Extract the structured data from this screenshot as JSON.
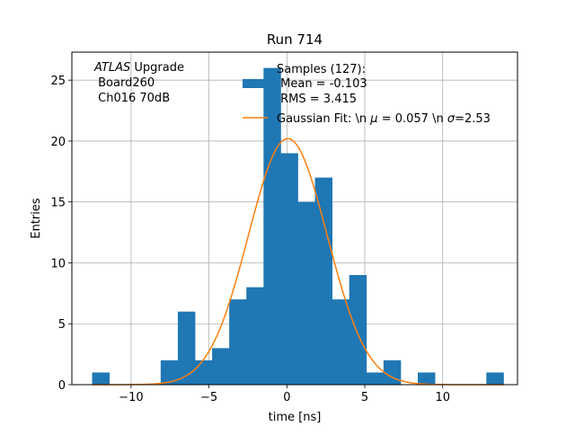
{
  "chart_data": {
    "type": "bar",
    "title": "Run 714",
    "xlabel": "time [ns]",
    "ylabel": "Entries",
    "xlim": [
      -13.8,
      14.8
    ],
    "ylim": [
      0,
      27.3
    ],
    "grid": true,
    "legend_position": "top-right",
    "colors": {
      "histogram": "#1f77b4",
      "fit": "#ff7f0e"
    },
    "bin_edges": [
      -12.5,
      -11.4,
      -10.3,
      -9.2,
      -8.1,
      -7.0,
      -5.9,
      -4.8,
      -3.7,
      -2.6,
      -1.5,
      -0.4,
      0.7,
      1.8,
      2.9,
      4.0,
      5.1,
      6.2,
      7.3,
      8.4,
      9.5,
      10.6,
      11.7,
      12.8,
      13.9
    ],
    "counts": [
      1,
      0,
      0,
      0,
      2,
      6,
      2,
      3,
      7,
      8,
      26,
      19,
      15,
      17,
      7,
      9,
      1,
      2,
      0,
      1,
      0,
      0,
      0,
      1
    ],
    "fit": {
      "mu": 0.057,
      "sigma": 2.53,
      "amplitude": 20.2
    },
    "x_ticks": [
      {
        "value": -10,
        "label": "−10"
      },
      {
        "value": -5,
        "label": "−5"
      },
      {
        "value": 0,
        "label": "0"
      },
      {
        "value": 5,
        "label": "5"
      },
      {
        "value": 10,
        "label": "10"
      }
    ],
    "y_ticks": [
      {
        "value": 0,
        "label": "0"
      },
      {
        "value": 5,
        "label": "5"
      },
      {
        "value": 10,
        "label": "10"
      },
      {
        "value": 15,
        "label": "15"
      },
      {
        "value": 20,
        "label": "20"
      },
      {
        "value": 25,
        "label": "25"
      }
    ],
    "annotation": {
      "italic_part": "ATLAS",
      "line1_rest": " Upgrade",
      "line2": " Board260",
      "line3": " Ch016 70dB"
    },
    "legend": {
      "samples_line1": "Samples (127):",
      "samples_line2": " Mean = -0.103",
      "samples_line3": " RMS = 3.415",
      "fit_label_pre": "Gaussian Fit: \\n ",
      "fit_mu_symbol": "μ",
      "fit_label_mid": " = 0.057 \\n ",
      "fit_sigma_symbol": "σ",
      "fit_label_post": "=2.53"
    }
  }
}
